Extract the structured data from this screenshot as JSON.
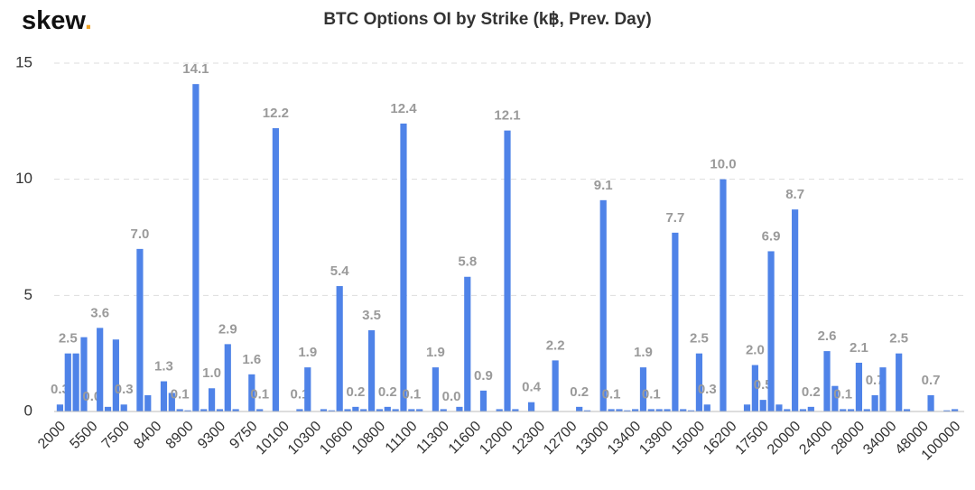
{
  "brand": {
    "name": "skew",
    "mark": "."
  },
  "chart_data": {
    "type": "bar",
    "title": "BTC Options OI by Strike (k฿, Prev. Day)",
    "color": "#4f83e8",
    "grid": true,
    "ylim": [
      0,
      15
    ],
    "yticks": [
      0,
      5,
      10,
      15
    ],
    "categories": [
      "2000",
      null,
      null,
      null,
      "5500",
      null,
      null,
      null,
      "7500",
      null,
      null,
      null,
      "8400",
      null,
      null,
      null,
      "8900",
      null,
      null,
      null,
      "9300",
      null,
      null,
      null,
      "9750",
      null,
      null,
      null,
      "10100",
      null,
      null,
      null,
      "10300",
      null,
      null,
      null,
      "10600",
      null,
      null,
      null,
      "10800",
      null,
      null,
      null,
      "11100",
      null,
      null,
      null,
      "11300",
      null,
      null,
      null,
      "11600",
      null,
      null,
      null,
      "12000",
      null,
      null,
      null,
      "12300",
      null,
      null,
      null,
      "12700",
      null,
      null,
      null,
      "13000",
      null,
      null,
      null,
      "13400",
      null,
      null,
      null,
      "13900",
      null,
      null,
      null,
      "15000",
      null,
      null,
      null,
      "16200",
      null,
      null,
      null,
      "17500",
      null,
      null,
      null,
      "20000",
      null,
      null,
      null,
      "24000",
      null,
      null,
      null,
      "28000",
      null,
      null,
      null,
      "34000",
      null,
      null,
      null,
      "48000",
      null,
      null,
      null,
      "100000"
    ],
    "values": [
      0.3,
      2.5,
      2.5,
      3.2,
      0,
      3.6,
      0.2,
      3.1,
      0.3,
      0,
      7.0,
      0.7,
      0,
      1.3,
      0.8,
      0.1,
      0.05,
      14.1,
      0.1,
      1.0,
      0.1,
      2.9,
      0.1,
      0,
      1.6,
      0.1,
      0,
      12.2,
      0,
      0,
      0.1,
      1.9,
      0,
      0.1,
      0.05,
      5.4,
      0.1,
      0.2,
      0.1,
      3.5,
      0.1,
      0.2,
      0.1,
      12.4,
      0.1,
      0.1,
      0,
      1.9,
      0.1,
      0,
      0.2,
      5.8,
      0,
      0.9,
      0,
      0.1,
      12.1,
      0.1,
      0,
      0.4,
      0,
      0,
      2.2,
      0,
      0,
      0.2,
      0.05,
      0,
      9.1,
      0.1,
      0.1,
      0.05,
      0.1,
      1.9,
      0.1,
      0.1,
      0.1,
      7.7,
      0.1,
      0.05,
      2.5,
      0.3,
      0,
      10.0,
      0,
      0,
      0.3,
      2.0,
      0.5,
      6.9,
      0.3,
      0.1,
      8.7,
      0.1,
      0.2,
      0,
      2.6,
      1.1,
      0.1,
      0.1,
      2.1,
      0.1,
      0.7,
      1.9,
      0,
      2.5,
      0.1,
      0,
      0,
      0.7,
      0,
      0.05,
      0.1
    ],
    "value_labels": [
      "0.3",
      "2.5",
      null,
      null,
      "0.0",
      "3.6",
      null,
      null,
      "0.3",
      null,
      "7.0",
      null,
      null,
      "1.3",
      null,
      "0.1",
      null,
      "14.1",
      null,
      "1.0",
      null,
      "2.9",
      null,
      null,
      "1.6",
      "0.1",
      null,
      "12.2",
      null,
      null,
      "0.1",
      "1.9",
      null,
      null,
      null,
      "5.4",
      null,
      "0.2",
      null,
      "3.5",
      null,
      "0.2",
      null,
      "12.4",
      "0.1",
      null,
      null,
      "1.9",
      null,
      "0.0",
      null,
      "5.8",
      null,
      "0.9",
      null,
      null,
      "12.1",
      null,
      null,
      "0.4",
      null,
      null,
      "2.2",
      null,
      null,
      "0.2",
      null,
      null,
      "9.1",
      "0.1",
      null,
      null,
      null,
      "1.9",
      "0.1",
      null,
      null,
      "7.7",
      null,
      null,
      "2.5",
      "0.3",
      null,
      "10.0",
      null,
      null,
      null,
      "2.0",
      "0.5",
      "6.9",
      null,
      null,
      "8.7",
      null,
      "0.2",
      null,
      "2.6",
      null,
      "0.1",
      null,
      "2.1",
      null,
      "0.7",
      null,
      null,
      "2.5",
      null,
      null,
      null,
      "0.7",
      null,
      null,
      null
    ]
  }
}
